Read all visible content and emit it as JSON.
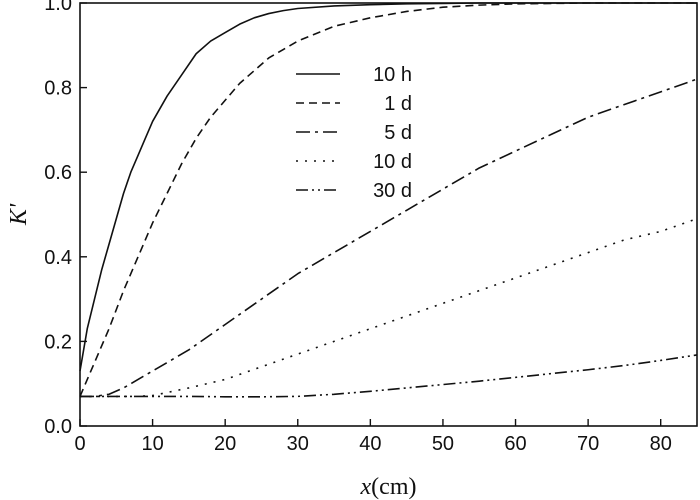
{
  "chart_data": {
    "type": "line",
    "title": "",
    "xlabel": "x(cm)",
    "xlabel_italic": "x",
    "xlabel_unit": "(cm)",
    "ylabel": "K'",
    "xlim": [
      0,
      85
    ],
    "ylim": [
      0.0,
      1.0
    ],
    "xticks": [
      0,
      10,
      20,
      30,
      40,
      50,
      60,
      70,
      80
    ],
    "yticks": [
      0.0,
      0.2,
      0.4,
      0.6,
      0.8,
      1.0
    ],
    "xtick_labels": [
      "0",
      "10",
      "20",
      "30",
      "40",
      "50",
      "60",
      "70",
      "80"
    ],
    "ytick_labels": [
      "0.0",
      "0.2",
      "0.4",
      "0.6",
      "0.8",
      "1.0"
    ],
    "grid": false,
    "legend_position": "upper-center",
    "series": [
      {
        "name": "10 h",
        "line_style": "solid",
        "x": [
          0,
          1,
          2,
          3,
          4,
          5,
          6,
          7,
          8,
          9,
          10,
          12,
          14,
          16,
          18,
          20,
          22,
          24,
          26,
          28,
          30,
          35,
          40,
          45,
          50,
          55,
          60,
          70,
          80,
          85
        ],
        "y": [
          0.13,
          0.23,
          0.3,
          0.37,
          0.43,
          0.49,
          0.55,
          0.6,
          0.64,
          0.68,
          0.72,
          0.78,
          0.83,
          0.88,
          0.91,
          0.93,
          0.95,
          0.965,
          0.975,
          0.982,
          0.987,
          0.993,
          0.996,
          0.998,
          0.999,
          1.0,
          1.0,
          1.0,
          1.0,
          1.0
        ]
      },
      {
        "name": "1 d",
        "line_style": "dashed",
        "x": [
          0,
          2,
          4,
          6,
          8,
          10,
          12,
          14,
          16,
          18,
          20,
          22,
          24,
          26,
          28,
          30,
          35,
          40,
          45,
          50,
          55,
          60,
          70,
          80,
          85
        ],
        "y": [
          0.07,
          0.15,
          0.23,
          0.32,
          0.4,
          0.48,
          0.55,
          0.62,
          0.68,
          0.73,
          0.77,
          0.81,
          0.84,
          0.87,
          0.89,
          0.91,
          0.945,
          0.965,
          0.98,
          0.99,
          0.995,
          0.998,
          1.0,
          1.0,
          1.0
        ]
      },
      {
        "name": "5 d",
        "line_style": "dash-dot",
        "x": [
          0,
          2,
          4,
          6,
          8,
          10,
          15,
          20,
          25,
          30,
          35,
          40,
          45,
          50,
          55,
          60,
          65,
          70,
          75,
          80,
          85
        ],
        "y": [
          0.07,
          0.07,
          0.075,
          0.09,
          0.11,
          0.13,
          0.18,
          0.24,
          0.3,
          0.36,
          0.41,
          0.46,
          0.51,
          0.56,
          0.61,
          0.65,
          0.69,
          0.73,
          0.76,
          0.79,
          0.82
        ]
      },
      {
        "name": "10 d",
        "line_style": "dotted",
        "x": [
          0,
          5,
          8,
          10,
          15,
          20,
          25,
          30,
          35,
          40,
          45,
          50,
          55,
          60,
          65,
          70,
          75,
          80,
          85
        ],
        "y": [
          0.07,
          0.07,
          0.07,
          0.072,
          0.09,
          0.11,
          0.14,
          0.17,
          0.2,
          0.23,
          0.26,
          0.29,
          0.32,
          0.35,
          0.38,
          0.41,
          0.44,
          0.46,
          0.49
        ]
      },
      {
        "name": "30 d",
        "line_style": "dash-dot-dot",
        "x": [
          0,
          5,
          10,
          15,
          20,
          25,
          30,
          35,
          40,
          45,
          50,
          55,
          60,
          65,
          70,
          75,
          80,
          85
        ],
        "y": [
          0.07,
          0.07,
          0.07,
          0.07,
          0.069,
          0.069,
          0.07,
          0.075,
          0.082,
          0.09,
          0.098,
          0.106,
          0.115,
          0.124,
          0.133,
          0.143,
          0.155,
          0.168
        ]
      }
    ]
  }
}
